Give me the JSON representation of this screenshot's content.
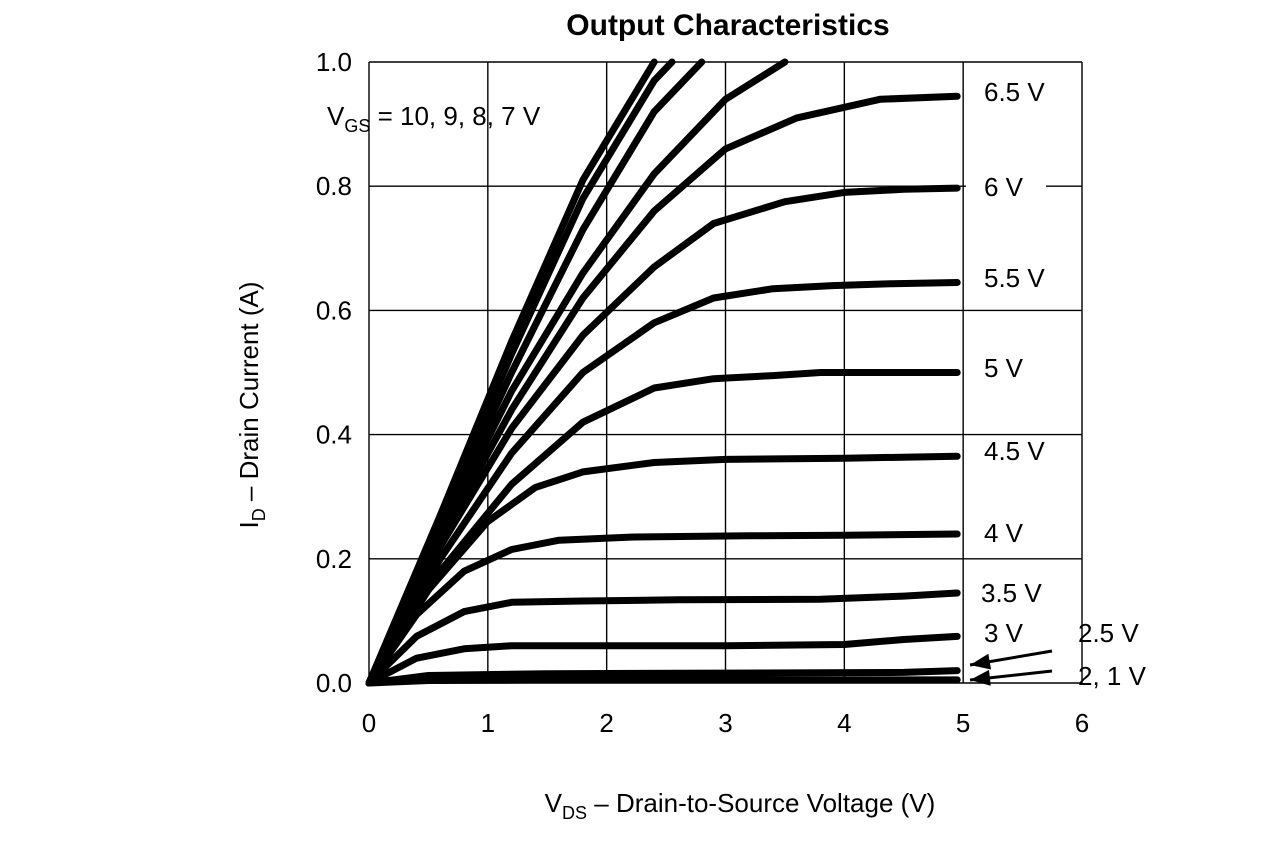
{
  "chart_data": {
    "type": "line",
    "title": "Output Characteristics",
    "xlabel": {
      "main": "V",
      "sub": "DS",
      "rest": " – Drain-to-Source Voltage (V)"
    },
    "ylabel": {
      "main": "I",
      "sub": "D",
      "rest": " – Drain Current (A)"
    },
    "xlim": [
      0,
      6
    ],
    "ylim": [
      0,
      1.0
    ],
    "xticks": [
      0,
      1,
      2,
      3,
      4,
      5,
      6
    ],
    "yticks": [
      0.0,
      0.2,
      0.4,
      0.6,
      0.8,
      1.0
    ],
    "xtick_labels": [
      "0",
      "1",
      "2",
      "3",
      "4",
      "5",
      "6"
    ],
    "ytick_labels": [
      "0.0",
      "0.2",
      "0.4",
      "0.6",
      "0.8",
      "1.0"
    ],
    "grid": true,
    "annotation": {
      "main": "V",
      "sub": "GS",
      "rest": " = 10, 9, 8, 7 V"
    },
    "series": [
      {
        "name": "10 V",
        "x": [
          0,
          0.6,
          1.2,
          1.8,
          2.4
        ],
        "y": [
          0,
          0.27,
          0.55,
          0.81,
          1.0
        ]
      },
      {
        "name": "9 V",
        "x": [
          0,
          0.6,
          1.2,
          1.8,
          2.4,
          2.55
        ],
        "y": [
          0,
          0.26,
          0.53,
          0.78,
          0.97,
          1.0
        ]
      },
      {
        "name": "8 V",
        "x": [
          0,
          0.6,
          1.2,
          1.8,
          2.4,
          2.8
        ],
        "y": [
          0,
          0.25,
          0.5,
          0.73,
          0.92,
          1.0
        ]
      },
      {
        "name": "7 V",
        "x": [
          0,
          0.6,
          1.2,
          1.8,
          2.4,
          3.0,
          3.5
        ],
        "y": [
          0,
          0.24,
          0.47,
          0.66,
          0.82,
          0.94,
          1.0
        ]
      },
      {
        "name": "6.5 V",
        "x": [
          0,
          0.6,
          1.2,
          1.8,
          2.4,
          3.0,
          3.6,
          4.3,
          4.95
        ],
        "y": [
          0,
          0.23,
          0.44,
          0.62,
          0.76,
          0.86,
          0.91,
          0.94,
          0.945
        ]
      },
      {
        "name": "6 V",
        "x": [
          0,
          0.6,
          1.2,
          1.8,
          2.4,
          2.9,
          3.5,
          4.0,
          4.5,
          4.95
        ],
        "y": [
          0,
          0.22,
          0.41,
          0.56,
          0.67,
          0.74,
          0.775,
          0.79,
          0.795,
          0.797
        ]
      },
      {
        "name": "5.5 V",
        "x": [
          0,
          0.6,
          1.2,
          1.8,
          2.4,
          2.9,
          3.4,
          3.9,
          4.4,
          4.95
        ],
        "y": [
          0,
          0.2,
          0.37,
          0.5,
          0.58,
          0.62,
          0.635,
          0.64,
          0.643,
          0.645
        ]
      },
      {
        "name": "5 V",
        "x": [
          0,
          0.6,
          1.2,
          1.8,
          2.4,
          2.9,
          3.4,
          3.8,
          4.95
        ],
        "y": [
          0,
          0.18,
          0.32,
          0.42,
          0.475,
          0.49,
          0.495,
          0.5,
          0.5
        ]
      },
      {
        "name": "4.5 V",
        "x": [
          0,
          0.5,
          1.0,
          1.4,
          1.8,
          2.4,
          3.0,
          4.0,
          4.95
        ],
        "y": [
          0,
          0.15,
          0.26,
          0.315,
          0.34,
          0.355,
          0.36,
          0.362,
          0.365
        ]
      },
      {
        "name": "4 V",
        "x": [
          0,
          0.4,
          0.8,
          1.2,
          1.6,
          2.2,
          3.2,
          4.0,
          4.95
        ],
        "y": [
          0,
          0.11,
          0.18,
          0.215,
          0.23,
          0.235,
          0.237,
          0.238,
          0.24
        ]
      },
      {
        "name": "3.5 V",
        "x": [
          0,
          0.4,
          0.8,
          1.2,
          1.8,
          2.6,
          3.8,
          4.5,
          4.95
        ],
        "y": [
          0,
          0.075,
          0.115,
          0.13,
          0.132,
          0.134,
          0.135,
          0.14,
          0.145
        ]
      },
      {
        "name": "3 V",
        "x": [
          0,
          0.4,
          0.8,
          1.2,
          2.0,
          3.0,
          4.0,
          4.5,
          4.95
        ],
        "y": [
          0,
          0.04,
          0.055,
          0.06,
          0.06,
          0.06,
          0.062,
          0.07,
          0.075
        ]
      },
      {
        "name": "2.5 V",
        "x": [
          0,
          0.5,
          1.5,
          3.0,
          4.5,
          4.95
        ],
        "y": [
          0,
          0.012,
          0.015,
          0.016,
          0.017,
          0.02
        ]
      },
      {
        "name": "2, 1 V",
        "x": [
          0,
          0.5,
          1.5,
          3.0,
          4.5,
          4.95
        ],
        "y": [
          0,
          0.004,
          0.005,
          0.005,
          0.005,
          0.005
        ]
      }
    ],
    "curve_labels": [
      "6.5 V",
      "6 V",
      "5.5 V",
      "5 V",
      "4.5 V",
      "4 V",
      "3.5 V",
      "3 V",
      "2.5 V",
      "2, 1 V"
    ]
  }
}
